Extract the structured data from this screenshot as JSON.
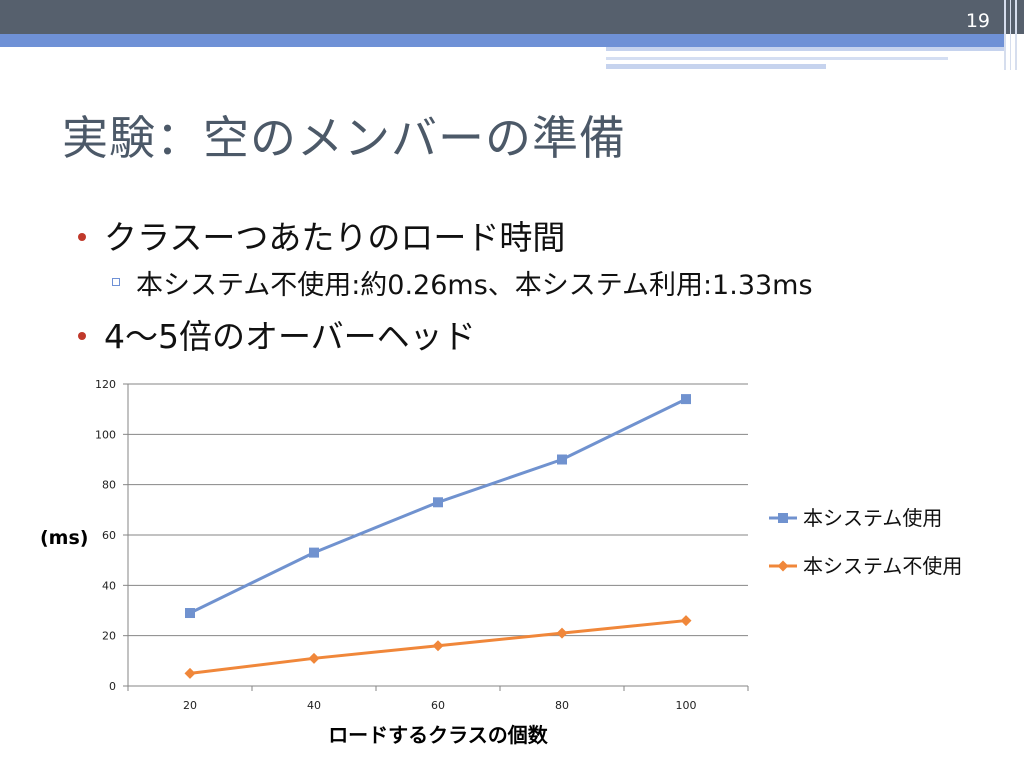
{
  "slide": {
    "page_number": "19",
    "title": "実験：空のメンバーの準備"
  },
  "bullets": [
    {
      "text": "クラスーつあたりのロード時間",
      "level": 1
    },
    {
      "text": "本システム不使用:約0.26ms、本システム利用:1.33ms",
      "level": 2
    },
    {
      "text": " 4～5倍のオーバーヘッド",
      "level": 1
    }
  ],
  "colors": {
    "top_bar": "#56606d",
    "accent_blue": "#6f91d6",
    "series_used": "#7092cf",
    "series_unused": "#f0873a",
    "bullet": "#c0392b"
  },
  "chart_data": {
    "type": "line",
    "title": "",
    "xlabel": "ロードするクラスの個数",
    "ylabel": "(ms)",
    "x": [
      20,
      40,
      60,
      80,
      100
    ],
    "x_tick_labels": [
      "20",
      "40",
      "60",
      "80",
      "100"
    ],
    "y_tick_labels": [
      "0",
      "20",
      "40",
      "60",
      "80",
      "100",
      "120"
    ],
    "ylim": [
      0,
      120
    ],
    "grid": true,
    "legend_placement": "right",
    "series": [
      {
        "name": "本システム使用",
        "values": [
          29,
          53,
          73,
          90,
          114
        ],
        "marker": "square",
        "color": "#7092cf"
      },
      {
        "name": "本システム不使用",
        "values": [
          5,
          11,
          16,
          21,
          26
        ],
        "marker": "diamond",
        "color": "#f0873a"
      }
    ]
  }
}
